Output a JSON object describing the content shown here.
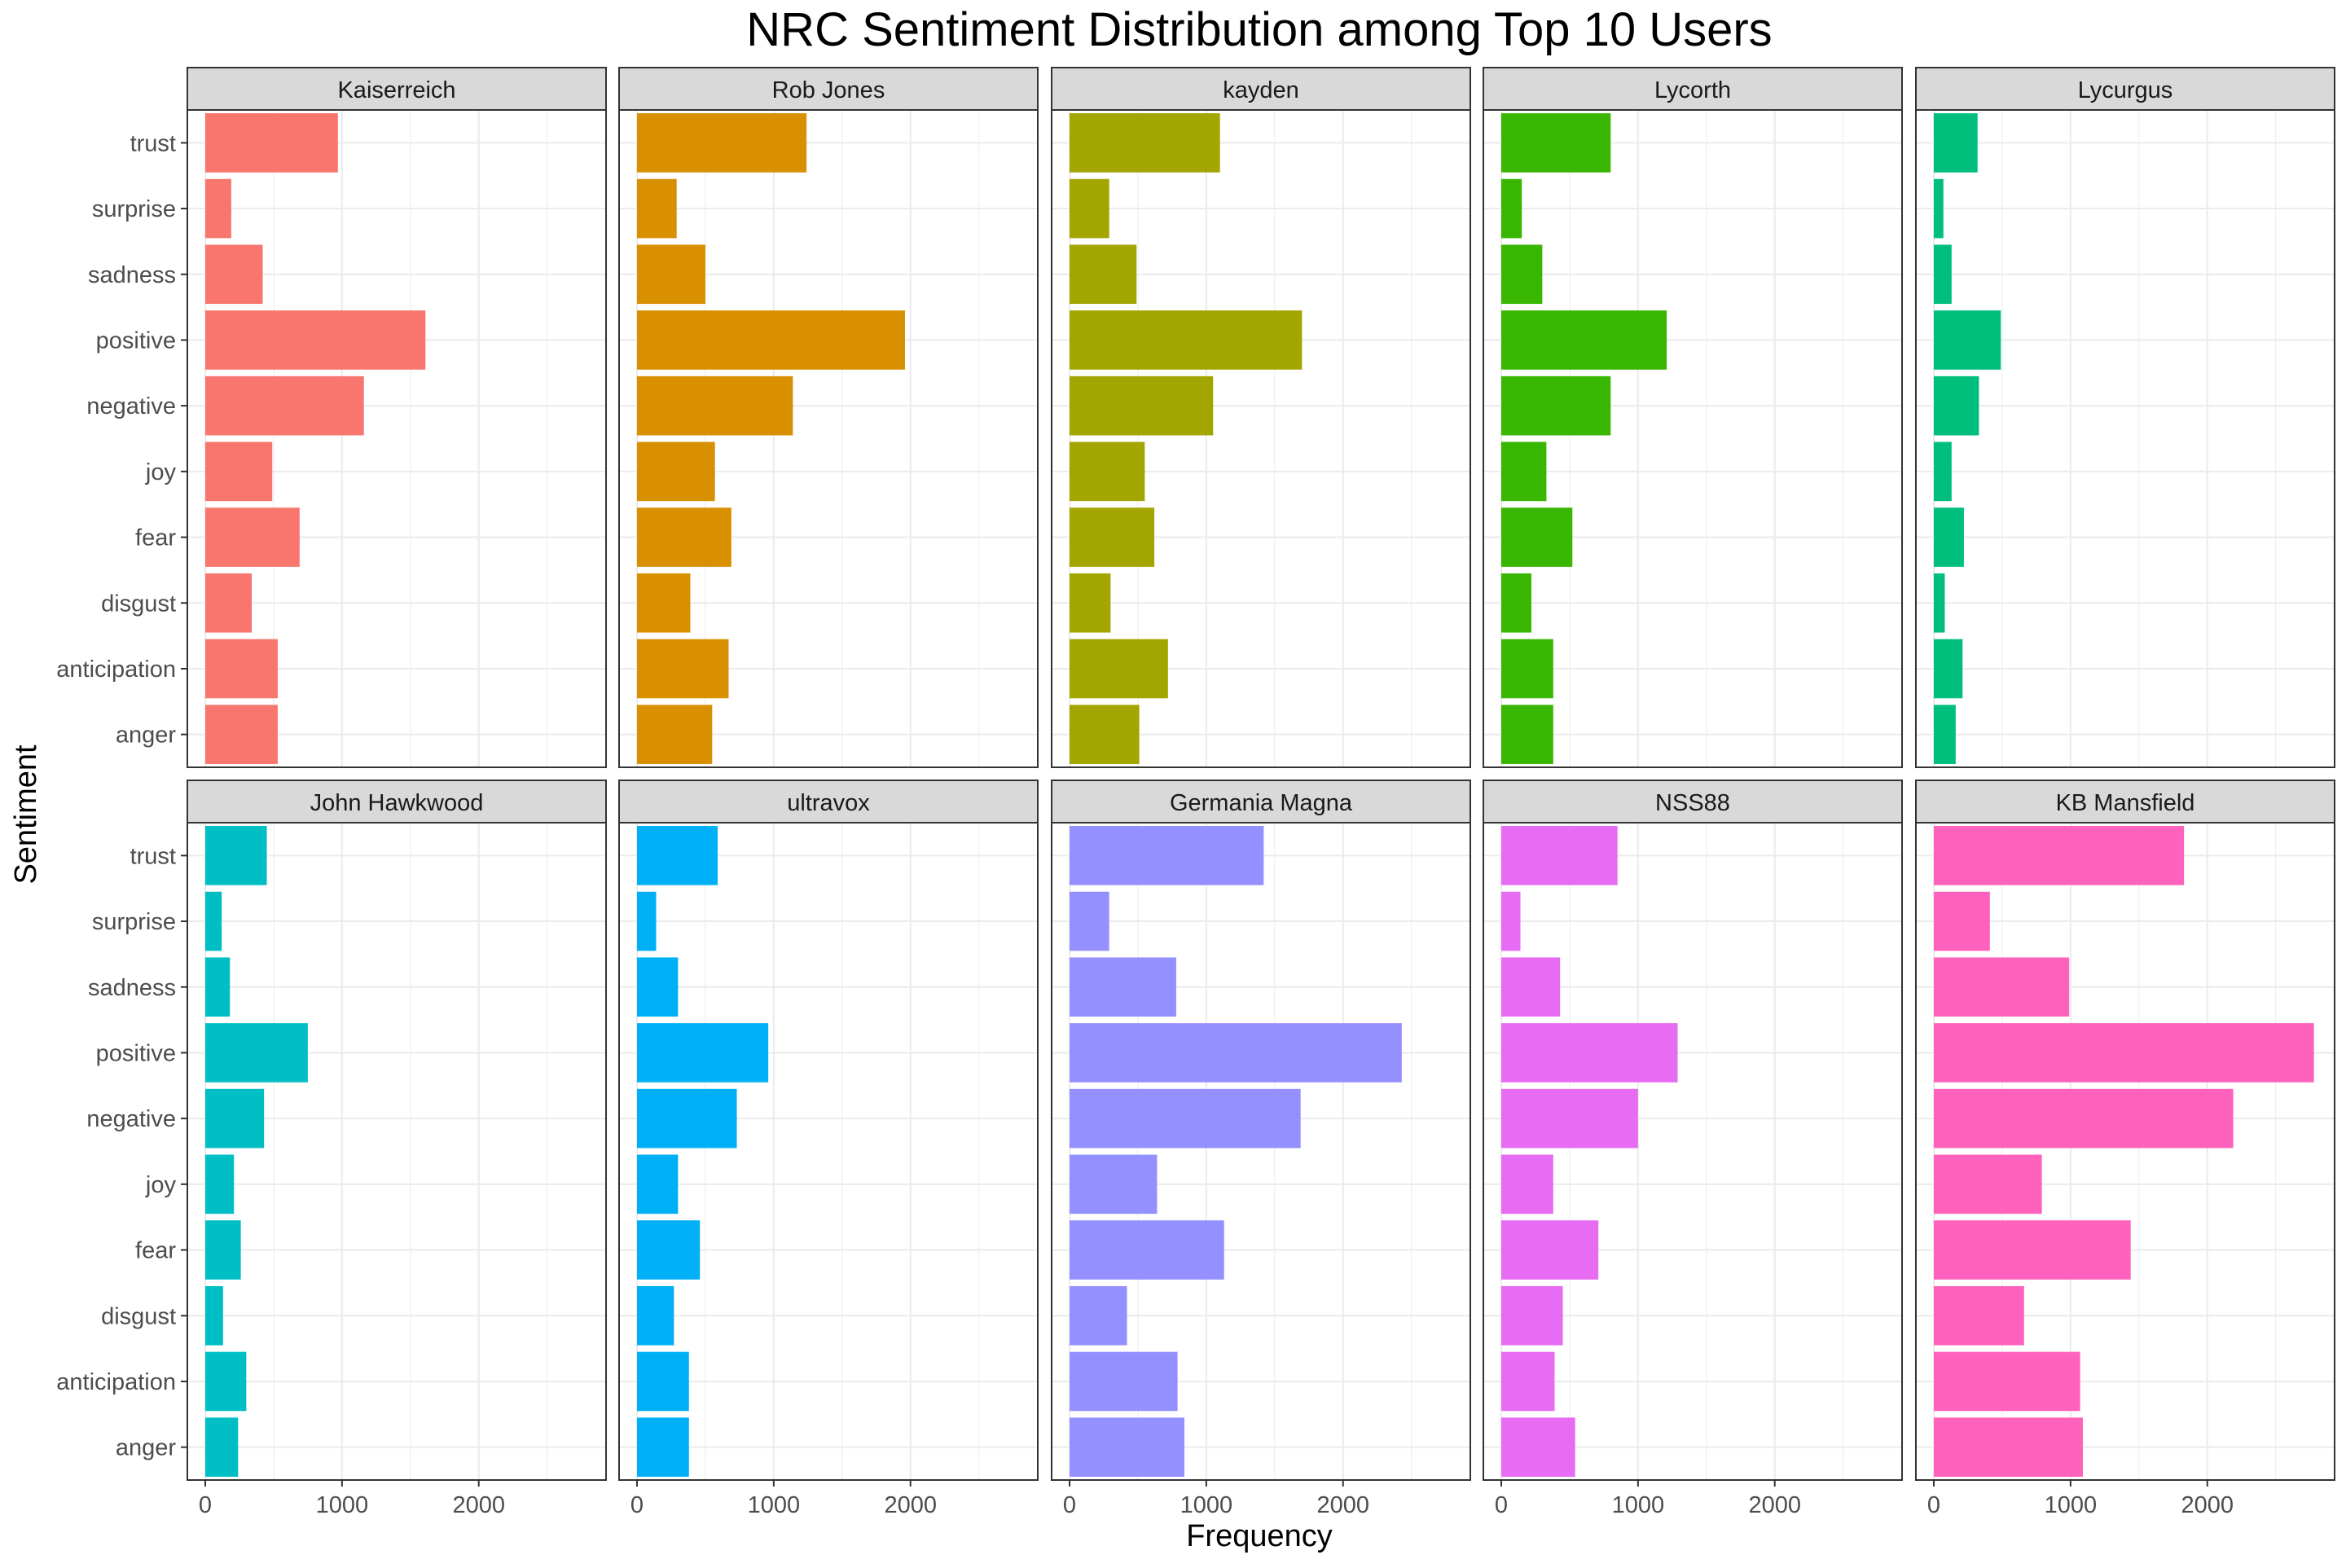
{
  "chart_data": {
    "type": "bar",
    "orientation": "horizontal",
    "title": "NRC Sentiment Distribution among Top 10 Users",
    "xlabel": "Frequency",
    "ylabel": "Sentiment",
    "xlim": [
      0,
      2800
    ],
    "x_ticks": [
      0,
      1000,
      2000
    ],
    "grid": true,
    "legend": "none",
    "categories": [
      "trust",
      "surprise",
      "sadness",
      "positive",
      "negative",
      "joy",
      "fear",
      "disgust",
      "anticipation",
      "anger"
    ],
    "series": [
      {
        "name": "Kaiserreich",
        "color": "#F8766D",
        "values": [
          970,
          190,
          420,
          1610,
          1160,
          490,
          690,
          340,
          530,
          530
        ]
      },
      {
        "name": "Rob Jones",
        "color": "#D89000",
        "values": [
          1240,
          290,
          500,
          1960,
          1140,
          570,
          690,
          390,
          670,
          550
        ]
      },
      {
        "name": "kayden",
        "color": "#A3A500",
        "values": [
          1100,
          290,
          490,
          1700,
          1050,
          550,
          620,
          300,
          720,
          510
        ]
      },
      {
        "name": "Lycorth",
        "color": "#39B600",
        "values": [
          800,
          150,
          300,
          1210,
          800,
          330,
          520,
          220,
          380,
          380
        ]
      },
      {
        "name": "Lycurgus",
        "color": "#00BF7D",
        "values": [
          320,
          70,
          130,
          490,
          330,
          130,
          220,
          80,
          210,
          160
        ]
      },
      {
        "name": "John Hawkwood",
        "color": "#00BFC4",
        "values": [
          450,
          120,
          180,
          750,
          430,
          210,
          260,
          130,
          300,
          240
        ]
      },
      {
        "name": "ultravox",
        "color": "#00B0F6",
        "values": [
          590,
          140,
          300,
          960,
          730,
          300,
          460,
          270,
          380,
          380
        ]
      },
      {
        "name": "Germania Magna",
        "color": "#9590FF",
        "values": [
          1420,
          290,
          780,
          2430,
          1690,
          640,
          1130,
          420,
          790,
          840
        ]
      },
      {
        "name": "NSS88",
        "color": "#E76BF3",
        "values": [
          850,
          140,
          430,
          1290,
          1000,
          380,
          710,
          450,
          390,
          540
        ]
      },
      {
        "name": "KB Mansfield",
        "color": "#FF62BC",
        "values": [
          1830,
          410,
          990,
          2780,
          2190,
          790,
          1440,
          660,
          1070,
          1090
        ]
      }
    ]
  }
}
